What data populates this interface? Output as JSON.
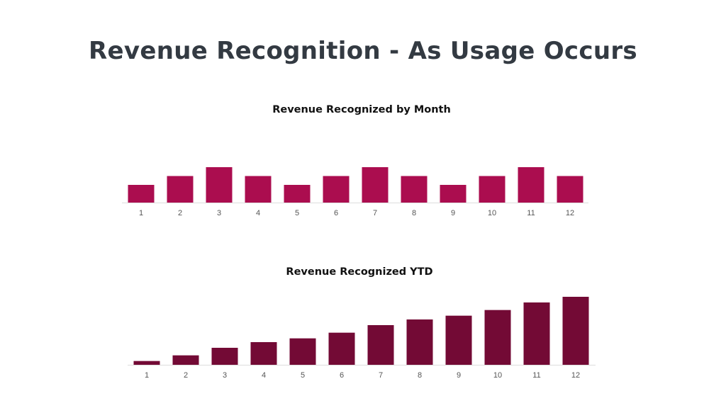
{
  "title": "Revenue Recognition - As Usage Occurs",
  "chart_data": [
    {
      "type": "bar",
      "title": "Revenue Recognized by Month",
      "categories": [
        "1",
        "2",
        "3",
        "4",
        "5",
        "6",
        "7",
        "8",
        "9",
        "10",
        "11",
        "12"
      ],
      "values": [
        2,
        3,
        4,
        3,
        2,
        3,
        4,
        3,
        2,
        3,
        4,
        3
      ],
      "xlabel": "",
      "ylabel": "",
      "ylim": [
        0,
        4
      ],
      "grid": false,
      "color": "#ab0d4f"
    },
    {
      "type": "bar",
      "title": "Revenue Recognized YTD",
      "categories": [
        "1",
        "2",
        "3",
        "4",
        "5",
        "6",
        "7",
        "8",
        "9",
        "10",
        "11",
        "12"
      ],
      "values": [
        2,
        5,
        9,
        12,
        14,
        17,
        21,
        24,
        26,
        29,
        33,
        36
      ],
      "xlabel": "",
      "ylabel": "",
      "ylim": [
        0,
        36
      ],
      "grid": false,
      "color": "#730a35"
    }
  ]
}
